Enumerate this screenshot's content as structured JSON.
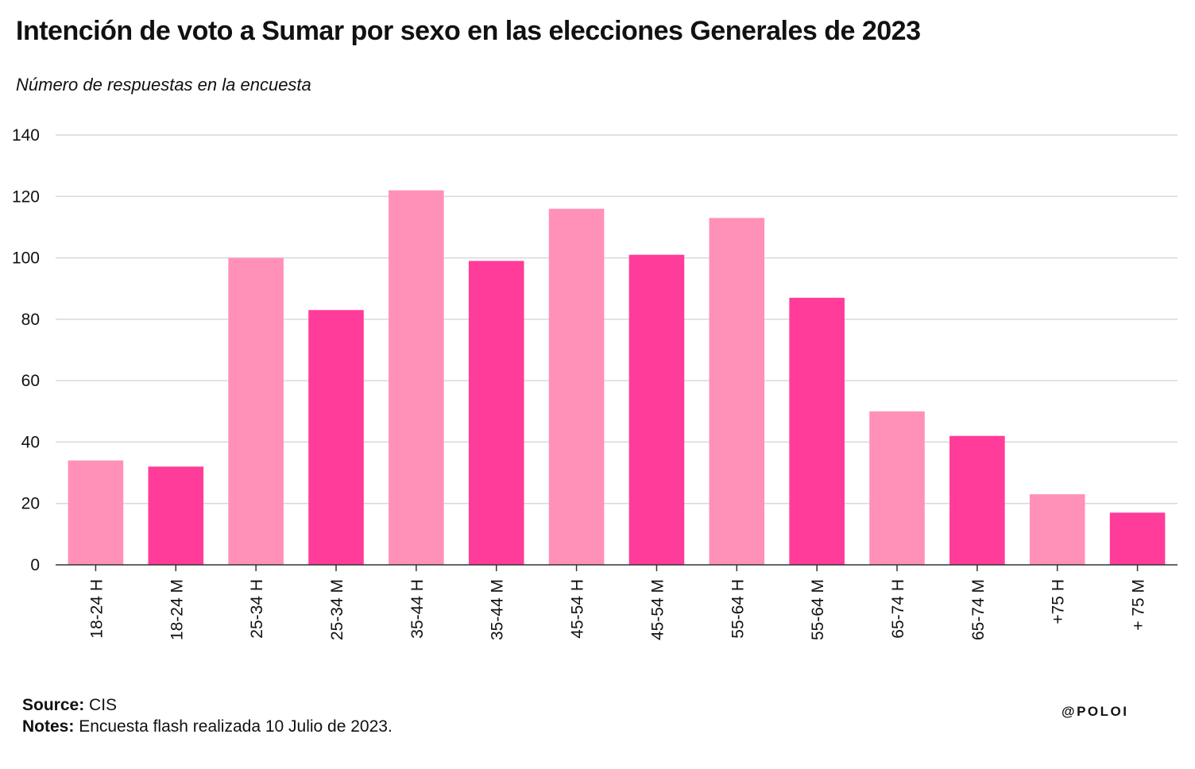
{
  "header": {
    "title": "Intención de voto a Sumar por sexo en las elecciones Generales de 2023",
    "subtitle": "Número de respuestas en la encuesta"
  },
  "footer": {
    "source_label": "Source:",
    "source_value": "CIS",
    "notes_label": "Notes:",
    "notes_value": "Encuesta flash realizada 10 Julio de 2023."
  },
  "brand": "@POLOI",
  "colors": {
    "H": "#ff91b9",
    "M": "#ff3c99",
    "grid": "#d9d9d9",
    "axis": "#333333"
  },
  "chart_data": {
    "type": "bar",
    "title": "Intención de voto a Sumar por sexo en las elecciones Generales de 2023",
    "subtitle": "Número de respuestas en la encuesta",
    "xlabel": "",
    "ylabel": "",
    "ylim": [
      0,
      140
    ],
    "yticks": [
      0,
      20,
      40,
      60,
      80,
      100,
      120,
      140
    ],
    "grid": true,
    "categories": [
      "18-24 H",
      "18-24 M",
      "25-34 H",
      "25-34 M",
      "35-44 H",
      "35-44 M",
      "45-54 H",
      "45-54 M",
      "55-64 H",
      "55-64 M",
      "65-74 H",
      "65-74 M",
      "+75 H",
      "+ 75 M"
    ],
    "values": [
      34,
      32,
      100,
      83,
      122,
      99,
      116,
      101,
      113,
      87,
      50,
      42,
      23,
      17
    ],
    "groups": [
      "H",
      "M",
      "H",
      "M",
      "H",
      "M",
      "H",
      "M",
      "H",
      "M",
      "H",
      "M",
      "H",
      "M"
    ]
  }
}
